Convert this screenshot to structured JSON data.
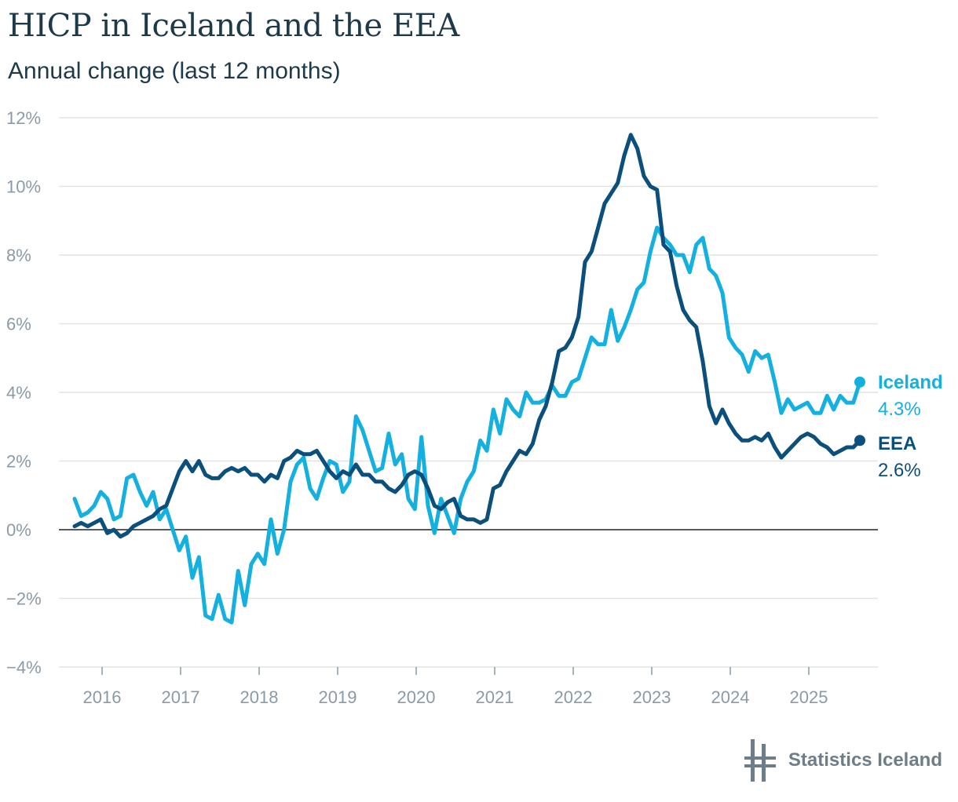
{
  "header": {
    "title": "HICP in Iceland and the EEA",
    "subtitle": "Annual change (last 12 months)"
  },
  "branding": {
    "name": "Statistics Iceland",
    "logo_icon": "statistics-iceland-logo-icon"
  },
  "colors": {
    "iceland": "#13b0e0",
    "eea": "#0b4f7c",
    "grid": "#e3e3e3",
    "axis_text": "#8a9aa6"
  },
  "chart_data": {
    "type": "line",
    "title": "HICP in Iceland and the EEA",
    "subtitle": "Annual change (last 12 months)",
    "xlabel": "",
    "ylabel": "",
    "ylim": [
      -4,
      12
    ],
    "y_ticks": [
      -4,
      -2,
      0,
      2,
      4,
      6,
      8,
      10,
      12
    ],
    "y_tick_labels": [
      "−4%",
      "−2%",
      "0%",
      "2%",
      "4%",
      "6%",
      "8%",
      "10%",
      "12%"
    ],
    "x_start": "2015-09",
    "x_tick_labels": [
      "2016",
      "2017",
      "2018",
      "2019",
      "2020",
      "2021",
      "2022",
      "2023",
      "2024",
      "2025"
    ],
    "series": [
      {
        "name": "Iceland",
        "end_label": "4.3%",
        "color": "#13b0e0",
        "values": [
          0.9,
          0.4,
          0.5,
          0.7,
          1.1,
          0.9,
          0.3,
          0.4,
          1.5,
          1.6,
          1.1,
          0.7,
          1.1,
          0.3,
          0.6,
          0.0,
          -0.6,
          -0.2,
          -1.4,
          -0.8,
          -2.5,
          -2.6,
          -1.9,
          -2.6,
          -2.7,
          -1.2,
          -2.2,
          -1.0,
          -0.7,
          -1.0,
          0.3,
          -0.7,
          0.0,
          1.4,
          1.9,
          2.1,
          1.2,
          0.9,
          1.5,
          2.0,
          1.9,
          1.1,
          1.4,
          3.3,
          2.9,
          2.3,
          1.7,
          1.8,
          2.8,
          1.9,
          2.2,
          0.9,
          0.6,
          2.7,
          0.7,
          -0.1,
          0.9,
          0.4,
          -0.1,
          0.9,
          1.4,
          1.7,
          2.6,
          2.3,
          3.5,
          2.8,
          3.8,
          3.5,
          3.3,
          4.0,
          3.7,
          3.7,
          3.8,
          4.2,
          3.9,
          3.9,
          4.3,
          4.4,
          5.0,
          5.6,
          5.4,
          5.4,
          6.4,
          5.5,
          5.9,
          6.4,
          7.0,
          7.2,
          8.1,
          8.8,
          8.5,
          8.3,
          8.0,
          8.0,
          7.5,
          8.3,
          8.5,
          7.6,
          7.4,
          6.9,
          5.6,
          5.3,
          5.1,
          4.6,
          5.2,
          5.0,
          5.1,
          4.3,
          3.4,
          3.8,
          3.5,
          3.6,
          3.7,
          3.4,
          3.4,
          3.9,
          3.5,
          3.9,
          3.7,
          3.7,
          4.3
        ]
      },
      {
        "name": "EEA",
        "end_label": "2.6%",
        "color": "#0b4f7c",
        "values": [
          0.1,
          0.2,
          0.1,
          0.2,
          0.3,
          -0.1,
          0.0,
          -0.2,
          -0.1,
          0.1,
          0.2,
          0.3,
          0.4,
          0.6,
          0.7,
          1.2,
          1.7,
          2.0,
          1.7,
          2.0,
          1.6,
          1.5,
          1.5,
          1.7,
          1.8,
          1.7,
          1.8,
          1.6,
          1.6,
          1.4,
          1.6,
          1.5,
          2.0,
          2.1,
          2.3,
          2.2,
          2.2,
          2.3,
          2.0,
          1.7,
          1.5,
          1.7,
          1.6,
          1.9,
          1.6,
          1.6,
          1.4,
          1.4,
          1.2,
          1.1,
          1.3,
          1.6,
          1.7,
          1.6,
          1.2,
          0.7,
          0.6,
          0.8,
          0.9,
          0.4,
          0.3,
          0.3,
          0.2,
          0.3,
          1.2,
          1.3,
          1.7,
          2.0,
          2.3,
          2.2,
          2.5,
          3.2,
          3.6,
          4.3,
          5.2,
          5.3,
          5.6,
          6.2,
          7.8,
          8.1,
          8.8,
          9.5,
          9.8,
          10.1,
          10.9,
          11.5,
          11.1,
          10.3,
          10.0,
          9.9,
          8.3,
          8.1,
          7.1,
          6.4,
          6.1,
          5.9,
          4.9,
          3.6,
          3.1,
          3.5,
          3.1,
          2.8,
          2.6,
          2.6,
          2.7,
          2.6,
          2.8,
          2.4,
          2.1,
          2.3,
          2.5,
          2.7,
          2.8,
          2.7,
          2.5,
          2.4,
          2.2,
          2.3,
          2.4,
          2.4,
          2.6
        ]
      }
    ]
  }
}
